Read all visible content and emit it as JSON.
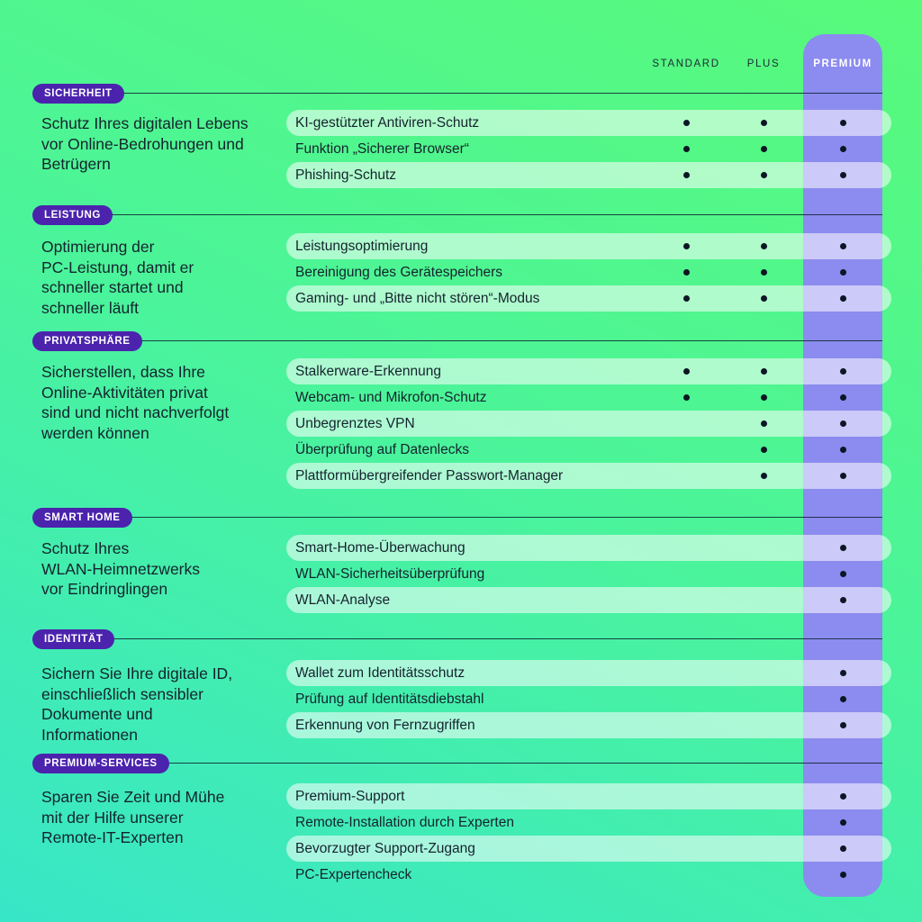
{
  "colors": {
    "background_green": "#58fa7a",
    "background_teal": "#38e6c8",
    "premium_column": "#8c8bef",
    "badge_purple": "#4b23ad",
    "row_pill": "rgba(255,255,255,0.55)",
    "text_dark": "#15232d",
    "dot_black": "#0c1624",
    "premium_header_text": "#ffffff"
  },
  "chart_data": {
    "type": "table",
    "columns": [
      "STANDARD",
      "PLUS",
      "PREMIUM"
    ],
    "highlight_column": "PREMIUM",
    "included_marker": "•",
    "sections": [
      {
        "badge": "SICHERHEIT",
        "description": "Schutz Ihres digitalen Lebens\nvor Online-Bedrohungen und\nBetrügern",
        "rows": [
          {
            "label": "KI-gestützter Antiviren-Schutz",
            "availability": [
              true,
              true,
              true
            ]
          },
          {
            "label": "Funktion „Sicherer Browser“",
            "availability": [
              true,
              true,
              true
            ]
          },
          {
            "label": "Phishing-Schutz",
            "availability": [
              true,
              true,
              true
            ]
          }
        ]
      },
      {
        "badge": "LEISTUNG",
        "description": "Optimierung der\nPC-Leistung, damit er\nschneller startet und\nschneller läuft",
        "rows": [
          {
            "label": "Leistungsoptimierung",
            "availability": [
              true,
              true,
              true
            ]
          },
          {
            "label": "Bereinigung des Gerätespeichers",
            "availability": [
              true,
              true,
              true
            ]
          },
          {
            "label": "Gaming- und „Bitte nicht stören“-Modus",
            "availability": [
              true,
              true,
              true
            ]
          }
        ]
      },
      {
        "badge": "PRIVATSPHÄRE",
        "description": "Sicherstellen, dass Ihre\nOnline-Aktivitäten privat\nsind und nicht nachverfolgt\nwerden können",
        "rows": [
          {
            "label": "Stalkerware-Erkennung",
            "availability": [
              true,
              true,
              true
            ]
          },
          {
            "label": "Webcam- und Mikrofon-Schutz",
            "availability": [
              true,
              true,
              true
            ]
          },
          {
            "label": "Unbegrenztes VPN",
            "availability": [
              false,
              true,
              true
            ]
          },
          {
            "label": "Überprüfung auf Datenlecks",
            "availability": [
              false,
              true,
              true
            ]
          },
          {
            "label": "Plattformübergreifender Passwort-Manager",
            "availability": [
              false,
              true,
              true
            ]
          }
        ]
      },
      {
        "badge": "SMART HOME",
        "description": "Schutz Ihres\nWLAN-Heimnetzwerks\nvor Eindringlingen",
        "rows": [
          {
            "label": "Smart-Home-Überwachung",
            "availability": [
              false,
              false,
              true
            ]
          },
          {
            "label": "WLAN-Sicherheitsüberprüfung",
            "availability": [
              false,
              false,
              true
            ]
          },
          {
            "label": "WLAN-Analyse",
            "availability": [
              false,
              false,
              true
            ]
          }
        ]
      },
      {
        "badge": "IDENTITÄT",
        "description": "Sichern Sie Ihre digitale ID,\neinschließlich sensibler\nDokumente und\nInformationen",
        "rows": [
          {
            "label": "Wallet zum Identitätsschutz",
            "availability": [
              false,
              false,
              true
            ]
          },
          {
            "label": "Prüfung auf Identitätsdiebstahl",
            "availability": [
              false,
              false,
              true
            ]
          },
          {
            "label": "Erkennung von Fernzugriffen",
            "availability": [
              false,
              false,
              true
            ]
          }
        ]
      },
      {
        "badge": "PREMIUM-SERVICES",
        "description": "Sparen Sie Zeit und Mühe\nmit der Hilfe unserer\nRemote-IT-Experten",
        "rows": [
          {
            "label": "Premium-Support",
            "availability": [
              false,
              false,
              true
            ]
          },
          {
            "label": "Remote-Installation durch Experten",
            "availability": [
              false,
              false,
              true
            ]
          },
          {
            "label": "Bevorzugter Support-Zugang",
            "availability": [
              false,
              false,
              true
            ]
          },
          {
            "label": "PC-Expertencheck",
            "availability": [
              false,
              false,
              true
            ]
          }
        ]
      }
    ]
  }
}
